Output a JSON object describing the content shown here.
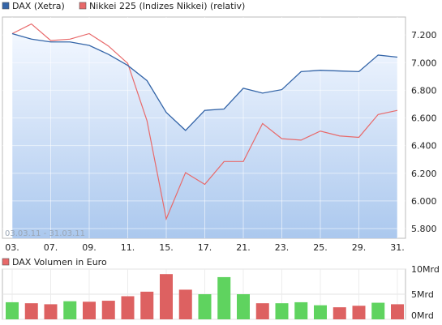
{
  "chart_data": [
    {
      "type": "line",
      "legend": [
        {
          "label": "DAX (Xetra)",
          "color": "#3465a8"
        },
        {
          "label": "Nikkei 225 (Indizes Nikkei) (relativ)",
          "color": "#e8696a"
        }
      ],
      "date_range": "03.03.11 - 31.03.11",
      "x_tick_labels": [
        "03.",
        "07.",
        "09.",
        "11.",
        "15.",
        "17.",
        "21.",
        "23.",
        "25.",
        "29.",
        "31."
      ],
      "x": [
        "03.03.",
        "04.03.",
        "07.03.",
        "08.03.",
        "09.03.",
        "10.03.",
        "11.03.",
        "14.03.",
        "15.03.",
        "16.03.",
        "17.03.",
        "18.03.",
        "21.03.",
        "22.03.",
        "23.03.",
        "24.03.",
        "25.03.",
        "28.03.",
        "29.03.",
        "30.03.",
        "31.03."
      ],
      "series": [
        {
          "name": "DAX (Xetra)",
          "color": "#3465a8",
          "values": [
            7210,
            7170,
            7150,
            7150,
            7125,
            7060,
            6980,
            6870,
            6640,
            6510,
            6655,
            6665,
            6815,
            6780,
            6805,
            6935,
            6945,
            6940,
            6935,
            7055,
            7040
          ]
        },
        {
          "name": "Nikkei 225 (Indizes Nikkei) (relativ)",
          "color": "#e8696a",
          "values": [
            7210,
            7280,
            7160,
            7170,
            7210,
            7120,
            6995,
            6580,
            5870,
            6205,
            6120,
            6285,
            6285,
            6560,
            6450,
            6440,
            6505,
            6470,
            6460,
            6625,
            6655
          ]
        }
      ],
      "y_tick_labels": [
        "7.200",
        "7.000",
        "6.800",
        "6.600",
        "6.400",
        "6.200",
        "6.000",
        "5.800"
      ],
      "y_ticks": [
        7200,
        7000,
        6800,
        6600,
        6400,
        6200,
        6000,
        5800
      ],
      "ylim": [
        5730,
        7330
      ],
      "grid": true
    },
    {
      "type": "bar",
      "legend": [
        {
          "label": "DAX Volumen in Euro",
          "color": "#e8696a"
        }
      ],
      "y_tick_labels": [
        "10Mrd",
        "5Mrd",
        "0Mrd"
      ],
      "y_ticks": [
        10,
        5,
        0
      ],
      "ylim": [
        0,
        10
      ],
      "values": [
        3.4,
        3.2,
        3.0,
        3.6,
        3.5,
        3.7,
        4.6,
        5.5,
        9.0,
        5.9,
        5.0,
        8.4,
        5.0,
        3.2,
        3.2,
        3.4,
        2.8,
        2.4,
        2.7,
        3.3,
        3.0
      ],
      "directions": [
        "up",
        "down",
        "down",
        "up",
        "down",
        "down",
        "down",
        "down",
        "down",
        "down",
        "up",
        "up",
        "up",
        "down",
        "up",
        "up",
        "up",
        "down",
        "down",
        "up",
        "down"
      ],
      "colors": {
        "up": "#5fd35f",
        "down": "#dd6161"
      }
    }
  ]
}
